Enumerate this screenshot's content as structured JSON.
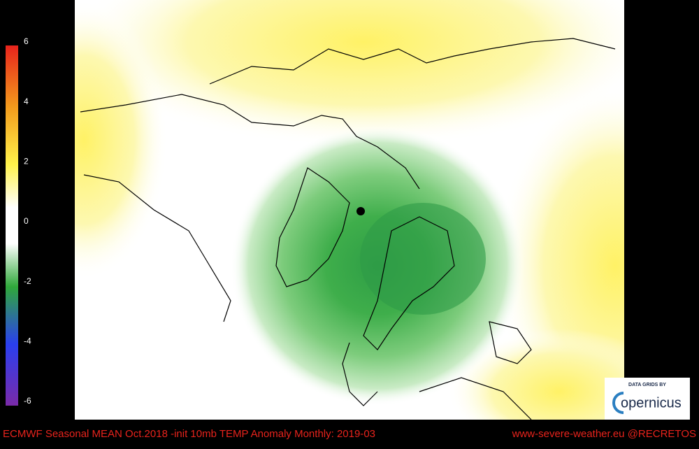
{
  "colorbar": {
    "ticks": [
      6,
      4,
      2,
      0,
      -2,
      -4,
      -6
    ]
  },
  "footer": {
    "title": "ECMWF Seasonal MEAN Oct.2018 -init   10mb TEMP Anomaly   Monthly: 2019-03",
    "credit": "www-severe-weather.eu  @RECRETOS"
  },
  "logo": {
    "caption": "DATA GRIDS BY",
    "name": "opernicus"
  }
}
